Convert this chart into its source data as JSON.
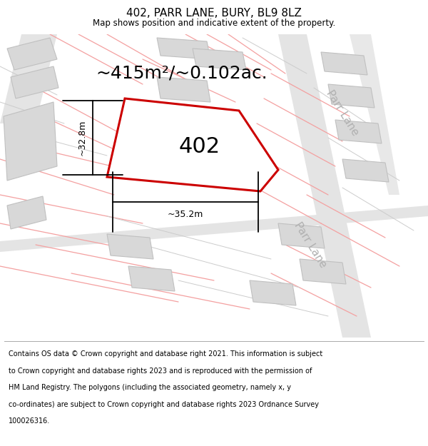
{
  "title": "402, PARR LANE, BURY, BL9 8LZ",
  "subtitle": "Map shows position and indicative extent of the property.",
  "footer_line1": "Contains OS data © Crown copyright and database right 2021. This information is subject",
  "footer_line2": "to Crown copyright and database rights 2023 and is reproduced with the permission of",
  "footer_line3": "HM Land Registry. The polygons (including the associated geometry, namely x, y",
  "footer_line4": "co-ordinates) are subject to Crown copyright and database rights 2023 Ordnance Survey",
  "footer_line5": "100026316.",
  "area_text": "~415m²/~0.102ac.",
  "plot_label": "402",
  "dim_width": "~35.2m",
  "dim_height": "~32.8m",
  "road_label": "Parr Lane",
  "bg_color": "#f2f2f2",
  "plot_color": "#cc0000",
  "building_fill": "#d8d8d8",
  "building_stroke": "#c0c0c0",
  "pink_line_color": "#f4a0a0",
  "gray_line_color": "#cccccc",
  "road_color": "#e8e8e8",
  "title_fontsize": 11,
  "subtitle_fontsize": 8.5,
  "footer_fontsize": 7.0,
  "area_fontsize": 18,
  "label_fontsize": 22,
  "dim_fontsize": 9,
  "road_label_fontsize": 11
}
